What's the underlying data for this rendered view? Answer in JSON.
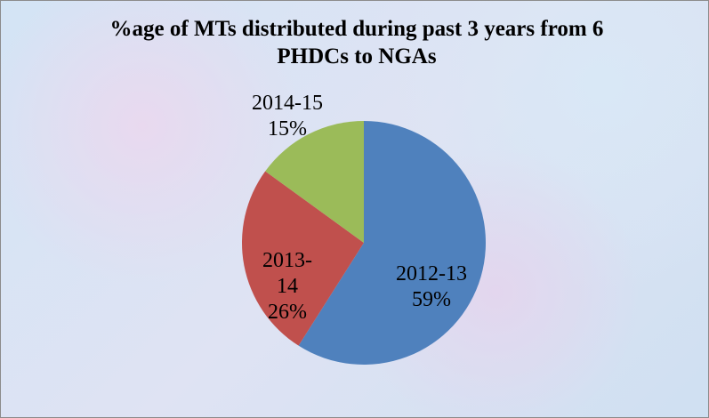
{
  "chart_data": {
    "type": "pie",
    "title": "%age of MTs distributed during past 3 years from 6 PHDCs to NGAs",
    "categories": [
      "2012-13",
      "2013-14",
      "2014-15"
    ],
    "values": [
      59,
      26,
      15
    ],
    "value_labels": [
      "59%",
      "26%",
      "15%"
    ],
    "colors": [
      "#4f81bd",
      "#c0504d",
      "#9bbb59"
    ]
  }
}
